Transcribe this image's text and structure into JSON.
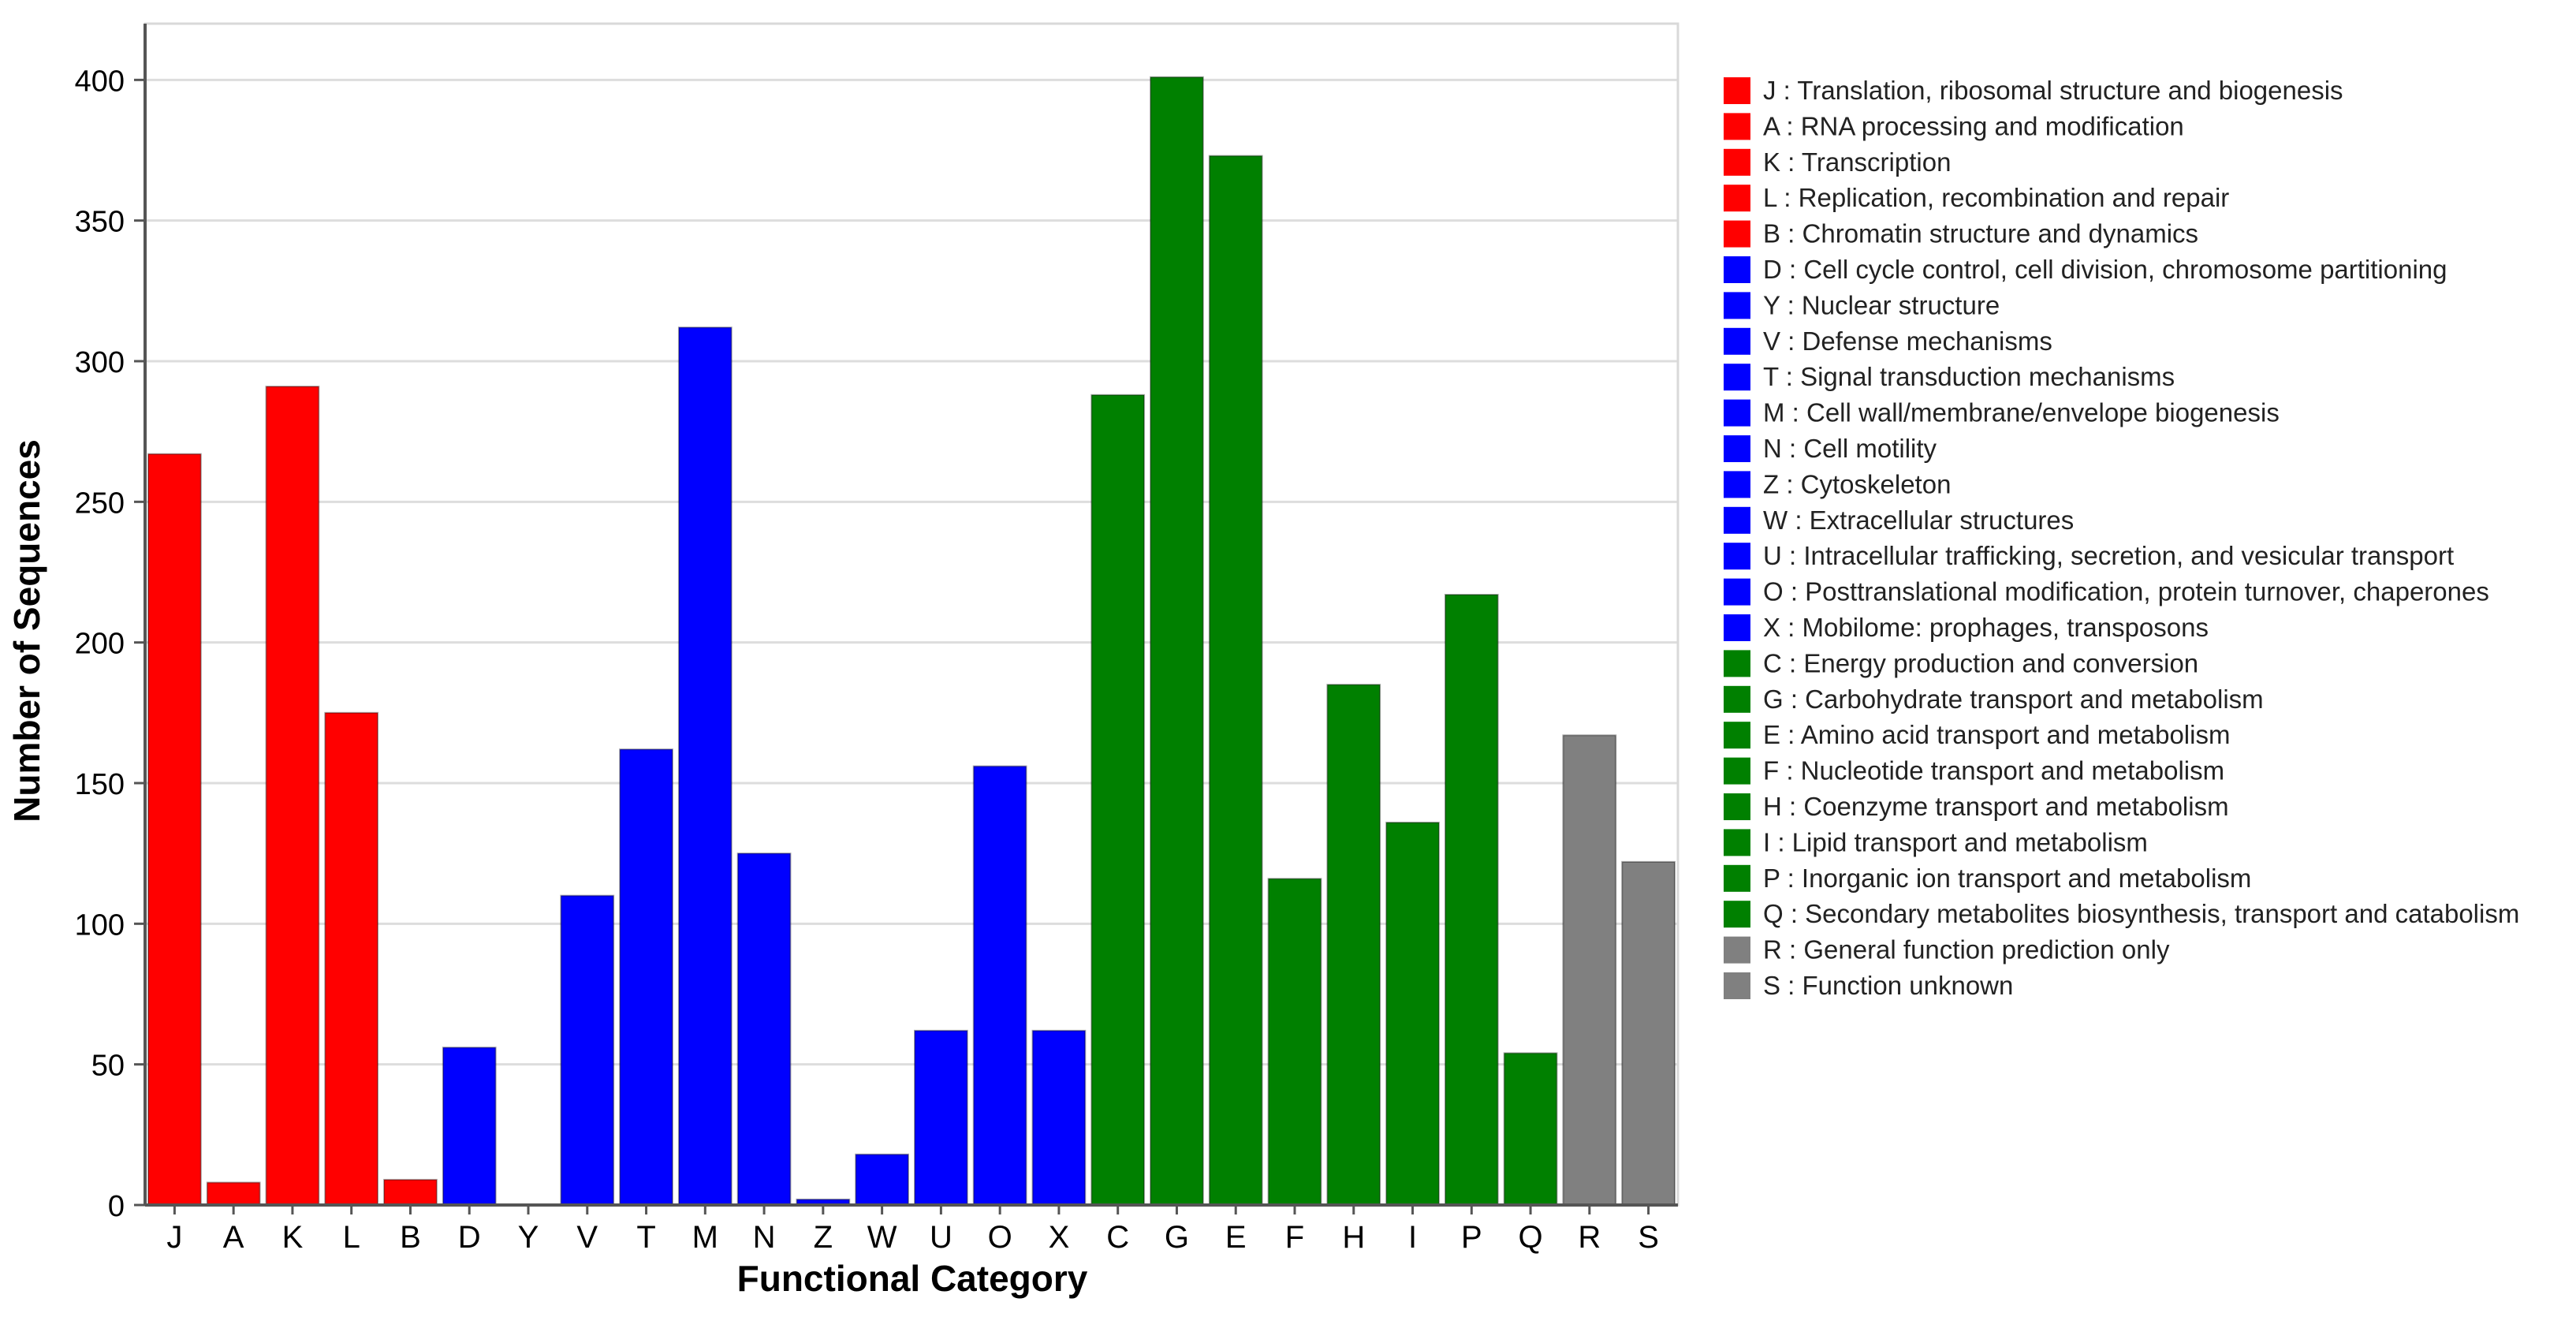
{
  "chart_data": {
    "type": "bar",
    "title": "",
    "xlabel": "Functional Category",
    "ylabel": "Number of Sequences",
    "ylim": [
      0,
      420
    ],
    "yticks": [
      0,
      50,
      100,
      150,
      200,
      250,
      300,
      350,
      400
    ],
    "grid": true,
    "legend_position": "right",
    "colors": {
      "red": "#ff0000",
      "blue": "#0000ff",
      "green": "#008000",
      "gray": "#808080"
    },
    "categories": [
      "J",
      "A",
      "K",
      "L",
      "B",
      "D",
      "Y",
      "V",
      "T",
      "M",
      "N",
      "Z",
      "W",
      "U",
      "O",
      "X",
      "C",
      "G",
      "E",
      "F",
      "H",
      "I",
      "P",
      "Q",
      "R",
      "S"
    ],
    "values": [
      267,
      8,
      291,
      175,
      9,
      56,
      0,
      110,
      162,
      312,
      125,
      2,
      18,
      62,
      156,
      62,
      288,
      401,
      373,
      116,
      185,
      136,
      217,
      54,
      167,
      122
    ],
    "bar_colors": [
      "red",
      "red",
      "red",
      "red",
      "red",
      "blue",
      "blue",
      "blue",
      "blue",
      "blue",
      "blue",
      "blue",
      "blue",
      "blue",
      "blue",
      "blue",
      "green",
      "green",
      "green",
      "green",
      "green",
      "green",
      "green",
      "green",
      "gray",
      "gray"
    ],
    "legend": [
      {
        "label": "J : Translation, ribosomal structure and biogenesis",
        "color": "red"
      },
      {
        "label": "A : RNA processing and modification",
        "color": "red"
      },
      {
        "label": "K : Transcription",
        "color": "red"
      },
      {
        "label": "L : Replication, recombination and repair",
        "color": "red"
      },
      {
        "label": "B : Chromatin structure and dynamics",
        "color": "red"
      },
      {
        "label": "D : Cell cycle control, cell division, chromosome partitioning",
        "color": "blue"
      },
      {
        "label": "Y : Nuclear structure",
        "color": "blue"
      },
      {
        "label": "V : Defense mechanisms",
        "color": "blue"
      },
      {
        "label": "T : Signal transduction mechanisms",
        "color": "blue"
      },
      {
        "label": "M : Cell wall/membrane/envelope biogenesis",
        "color": "blue"
      },
      {
        "label": "N : Cell motility",
        "color": "blue"
      },
      {
        "label": "Z : Cytoskeleton",
        "color": "blue"
      },
      {
        "label": "W : Extracellular structures",
        "color": "blue"
      },
      {
        "label": "U : Intracellular trafficking, secretion, and vesicular transport",
        "color": "blue"
      },
      {
        "label": "O : Posttranslational modification, protein turnover, chaperones",
        "color": "blue"
      },
      {
        "label": "X : Mobilome: prophages, transposons",
        "color": "blue"
      },
      {
        "label": "C : Energy production and conversion",
        "color": "green"
      },
      {
        "label": "G : Carbohydrate transport and metabolism",
        "color": "green"
      },
      {
        "label": "E : Amino acid transport and metabolism",
        "color": "green"
      },
      {
        "label": "F : Nucleotide transport and metabolism",
        "color": "green"
      },
      {
        "label": "H : Coenzyme transport and metabolism",
        "color": "green"
      },
      {
        "label": "I : Lipid transport and metabolism",
        "color": "green"
      },
      {
        "label": "P : Inorganic ion transport and metabolism",
        "color": "green"
      },
      {
        "label": "Q : Secondary metabolites biosynthesis, transport and catabolism",
        "color": "green"
      },
      {
        "label": "R : General function prediction only",
        "color": "gray"
      },
      {
        "label": "S : Function unknown",
        "color": "gray"
      }
    ]
  }
}
